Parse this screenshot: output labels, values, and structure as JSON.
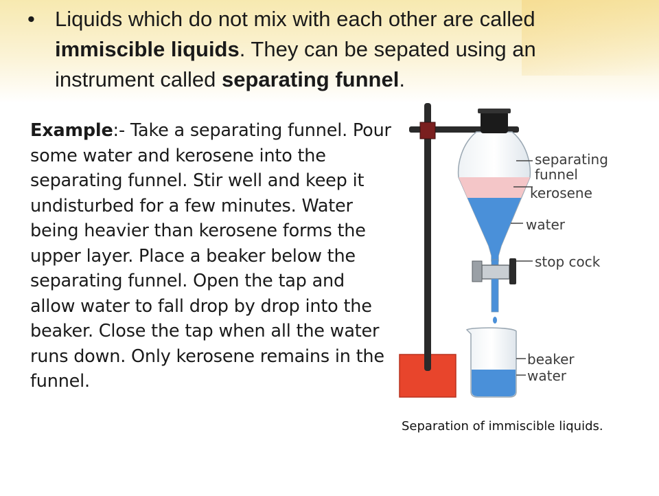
{
  "bullet": {
    "marker": "•",
    "part1": "Liquids which do not mix with each other are called ",
    "term1": "immiscible liquids",
    "part2": ". They can be sepated using an instrument called ",
    "term2": "separating funnel",
    "part3": "."
  },
  "example": {
    "label": "Example",
    "separator": ":-",
    "text": " Take a separating funnel. Pour some water and kerosene into the separating funnel. Stir well and keep it undisturbed for a few minutes. Water being heavier than kerosene forms the upper layer. Place a beaker below the separating funnel. Open the tap and allow water to fall drop by drop into the beaker. Close the tap when all the water runs down. Only kerosene remains in the funnel."
  },
  "figure": {
    "labels": {
      "funnel_line1": "separating",
      "funnel_line2": "funnel",
      "kerosene": "kerosene",
      "water": "water",
      "stop_cock": "stop cock",
      "beaker": "beaker",
      "beaker_water": "water"
    },
    "colors": {
      "kerosene": "#f4c6c8",
      "water": "#4a90d9",
      "stand_block": "#e8452c",
      "stopper": "#1b1b1b",
      "rod": "#2a2a2a"
    }
  },
  "caption": "Separation of immiscible liquids."
}
